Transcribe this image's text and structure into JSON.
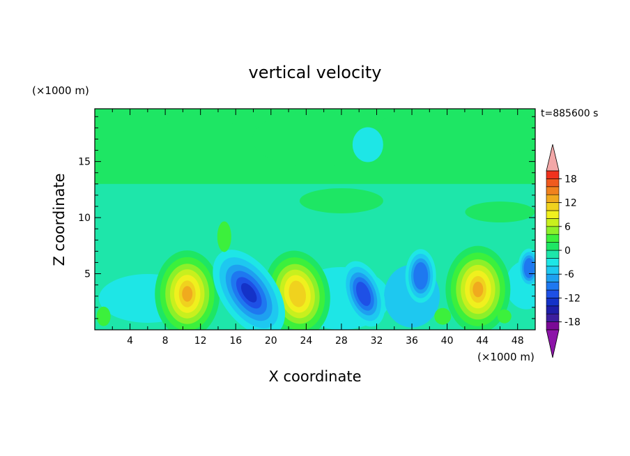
{
  "chart_data": {
    "type": "heatmap",
    "title": "vertical velocity",
    "xlabel": "X coordinate",
    "ylabel": "Z coordinate",
    "x_unit": "(×1000 m)",
    "y_unit": "(×1000 m)",
    "time_label": "t=885600 s",
    "xlim": [
      0,
      50
    ],
    "ylim": [
      0,
      19.7
    ],
    "x_ticks": [
      "4",
      "8",
      "12",
      "16",
      "20",
      "24",
      "28",
      "32",
      "36",
      "40",
      "44",
      "48"
    ],
    "y_ticks": [
      "5",
      "10",
      "15"
    ],
    "colorbar": {
      "levels": [
        -20,
        -18,
        -16,
        -14,
        -12,
        -10,
        -8,
        -6,
        -4,
        -2,
        0,
        2,
        4,
        6,
        8,
        10,
        12,
        14,
        16,
        18,
        20
      ],
      "colors": [
        "#7a0a96",
        "#3c1e9e",
        "#1e1ea8",
        "#1432c8",
        "#1e50e6",
        "#1e78f0",
        "#1ea0f0",
        "#1ec8f0",
        "#1ee6e6",
        "#1ee6aa",
        "#1ee664",
        "#3cf03c",
        "#8cf02a",
        "#c8f01e",
        "#f0f01e",
        "#f0d21e",
        "#f0aa1e",
        "#f0821e",
        "#f05a1e",
        "#f0321e",
        "#e61e1e"
      ],
      "over_color": "#f2a7a7",
      "under_color": "#8c14a8",
      "tick_labels": [
        "18",
        "12",
        "6",
        "0",
        "-6",
        "-12",
        "-18"
      ]
    },
    "features": [
      {
        "kind": "updraft",
        "x": 10.5,
        "z": 3.2,
        "peak": 12
      },
      {
        "kind": "updraft",
        "x": 23,
        "z": 3.2,
        "peak": 10
      },
      {
        "kind": "updraft",
        "x": 43.5,
        "z": 3.6,
        "peak": 12
      },
      {
        "kind": "downdraft",
        "x": 17.5,
        "z": 3.2,
        "peak": -12
      },
      {
        "kind": "downdraft",
        "x": 30.5,
        "z": 3.2,
        "peak": -10
      },
      {
        "kind": "downdraft",
        "x": 37,
        "z": 5,
        "peak": -8
      },
      {
        "kind": "downdraft",
        "x": 49.3,
        "z": 5.5,
        "peak": -8
      },
      {
        "kind": "weak-descent",
        "x": 31,
        "z": 16.5,
        "peak": -3
      }
    ]
  }
}
